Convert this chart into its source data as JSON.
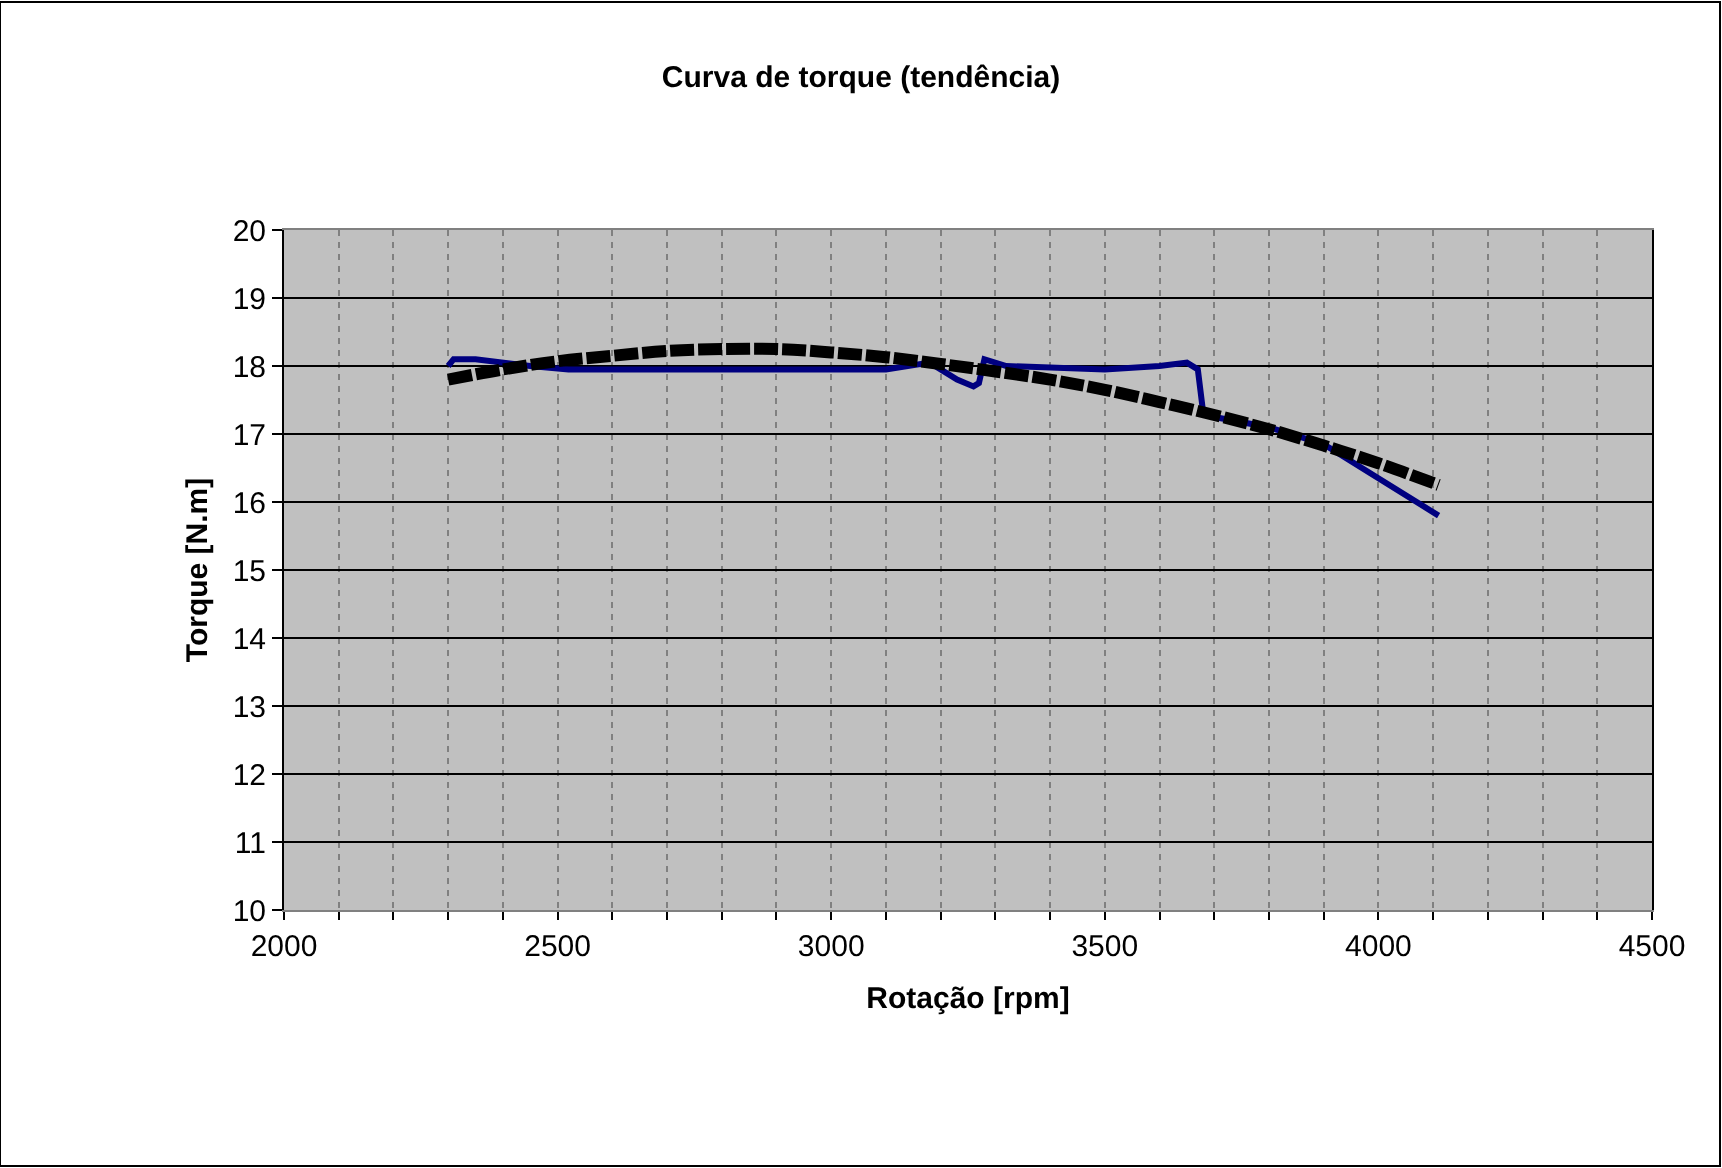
{
  "chart_data": {
    "type": "line",
    "title": "Curva de torque (tendência)",
    "xlabel": "Rotação [rpm]",
    "ylabel": "Torque [N.m]",
    "xlim": [
      2000,
      4500
    ],
    "ylim": [
      10,
      20
    ],
    "xticks": [
      2000,
      {
        "value": 2100,
        "label": null
      },
      {
        "value": 2200,
        "label": null
      },
      {
        "value": 2300,
        "label": null
      },
      {
        "value": 2400,
        "label": null
      },
      2500,
      {
        "value": 2600,
        "label": null
      },
      {
        "value": 2700,
        "label": null
      },
      {
        "value": 2800,
        "label": null
      },
      {
        "value": 2900,
        "label": null
      },
      3000,
      {
        "value": 3100,
        "label": null
      },
      {
        "value": 3200,
        "label": null
      },
      {
        "value": 3300,
        "label": null
      },
      {
        "value": 3400,
        "label": null
      },
      3500,
      {
        "value": 3600,
        "label": null
      },
      {
        "value": 3700,
        "label": null
      },
      {
        "value": 3800,
        "label": null
      },
      {
        "value": 3900,
        "label": null
      },
      4000,
      {
        "value": 4100,
        "label": null
      },
      {
        "value": 4200,
        "label": null
      },
      {
        "value": 4300,
        "label": null
      },
      {
        "value": 4400,
        "label": null
      },
      4500
    ],
    "yticks": [
      10,
      11,
      12,
      13,
      14,
      15,
      16,
      17,
      18,
      19,
      20
    ],
    "grid": true,
    "series": [
      {
        "color": "#000080",
        "line_style": "solid",
        "x": [
          2300,
          2310,
          2350,
          2450,
          2520,
          3100,
          3180,
          3230,
          3260,
          3270,
          3280,
          3320,
          3500,
          3600,
          3650,
          3670,
          3680,
          3700,
          3800,
          3900,
          4000,
          4110
        ],
        "values": [
          18.0,
          18.1,
          18.1,
          18.0,
          17.95,
          17.95,
          18.05,
          17.8,
          17.7,
          17.75,
          18.1,
          18.0,
          17.95,
          18.0,
          18.05,
          17.95,
          17.3,
          17.25,
          17.1,
          16.85,
          16.35,
          15.8
        ]
      },
      {
        "color": "#000000",
        "line_style": "dashed",
        "x": [
          2300,
          2400,
          2500,
          2600,
          2700,
          2800,
          2900,
          3000,
          3100,
          3200,
          3300,
          3400,
          3500,
          3600,
          3700,
          3800,
          3900,
          4000,
          4110
        ],
        "values": [
          17.8,
          17.95,
          18.07,
          18.15,
          18.22,
          18.25,
          18.25,
          18.2,
          18.13,
          18.03,
          17.92,
          17.8,
          17.65,
          17.47,
          17.28,
          17.07,
          16.83,
          16.57,
          16.25
        ]
      }
    ]
  }
}
